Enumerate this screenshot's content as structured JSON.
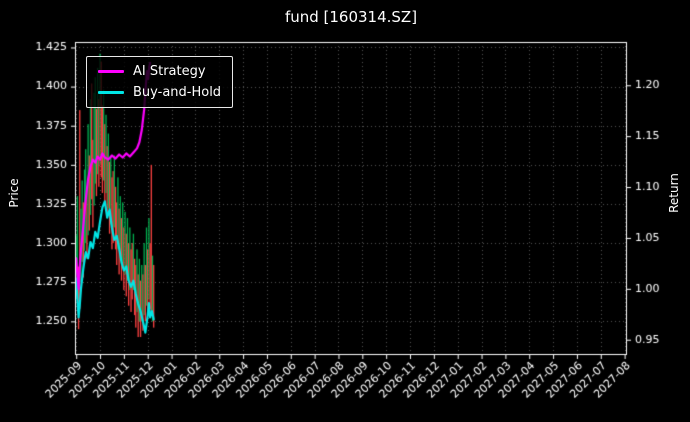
{
  "title": "fund [160314.SZ]",
  "axes": {
    "price_label": "Price",
    "return_label": "Return"
  },
  "legend": {
    "items": [
      {
        "label": "AI Strategy",
        "color": "#ff00ff"
      },
      {
        "label": "Buy-and-Hold",
        "color": "#00e5e5"
      }
    ]
  },
  "colors": {
    "background": "#000000",
    "text": "#ffffff",
    "grid": "rgba(170,170,170,0.5)",
    "frame": "#ffffff",
    "candle_up": "#00b050",
    "candle_down": "#fd4141",
    "ai_line": "#ff00ff",
    "bh_line": "#00e5e5"
  },
  "chart_data": {
    "type": "line",
    "title": "fund [160314.SZ]",
    "grid": "dotted",
    "legend_position": "upper-left",
    "x_tick_labels": [
      "2025-09",
      "2025-10",
      "2025-11",
      "2025-12",
      "2026-01",
      "2026-02",
      "2026-03",
      "2026-04",
      "2026-05",
      "2026-06",
      "2026-07",
      "2026-08",
      "2026-09",
      "2026-10",
      "2026-11",
      "2026-12",
      "2027-01",
      "2027-02",
      "2027-03",
      "2027-04",
      "2027-05",
      "2027-06",
      "2027-07",
      "2027-08"
    ],
    "xlim": [
      -0.05,
      23.1
    ],
    "price_axis": {
      "label": "Price",
      "side": "left",
      "ticks": [
        1.425,
        1.4,
        1.375,
        1.35,
        1.325,
        1.3,
        1.275,
        1.25
      ],
      "decimals": 3,
      "ylim": [
        1.2285,
        1.4285
      ]
    },
    "return_axis": {
      "label": "Return",
      "side": "right",
      "ticks": [
        1.2,
        1.15,
        1.1,
        1.05,
        1.0,
        0.95
      ],
      "decimals": 2,
      "ylim": [
        0.935,
        1.2425
      ]
    },
    "series": [
      {
        "name": "AI Strategy",
        "axis": "return",
        "color": "#ff00ff",
        "linewidth": 2.2,
        "points": [
          [
            0.0,
            1.03
          ],
          [
            0.05,
            1.014
          ],
          [
            0.1,
            1.0
          ],
          [
            0.15,
            1.022
          ],
          [
            0.2,
            1.038
          ],
          [
            0.3,
            1.062
          ],
          [
            0.4,
            1.088
          ],
          [
            0.5,
            1.108
          ],
          [
            0.6,
            1.12
          ],
          [
            0.7,
            1.127
          ],
          [
            0.8,
            1.124
          ],
          [
            0.9,
            1.13
          ],
          [
            1.0,
            1.127
          ],
          [
            1.1,
            1.133
          ],
          [
            1.2,
            1.129
          ],
          [
            1.35,
            1.127
          ],
          [
            1.5,
            1.131
          ],
          [
            1.65,
            1.128
          ],
          [
            1.8,
            1.132
          ],
          [
            1.95,
            1.129
          ],
          [
            2.1,
            1.133
          ],
          [
            2.25,
            1.13
          ],
          [
            2.4,
            1.134
          ],
          [
            2.55,
            1.138
          ],
          [
            2.65,
            1.144
          ],
          [
            2.75,
            1.156
          ],
          [
            2.85,
            1.176
          ],
          [
            2.92,
            1.2
          ],
          [
            2.97,
            1.214
          ],
          [
            3.02,
            1.206
          ],
          [
            3.07,
            1.219
          ],
          [
            3.1,
            1.222
          ]
        ]
      },
      {
        "name": "Buy-and-Hold",
        "axis": "return",
        "color": "#00e5e5",
        "linewidth": 2.2,
        "points": [
          [
            0.0,
            1.01
          ],
          [
            0.05,
            0.99
          ],
          [
            0.1,
            0.972
          ],
          [
            0.15,
            0.984
          ],
          [
            0.2,
            1.0
          ],
          [
            0.3,
            1.02
          ],
          [
            0.4,
            1.036
          ],
          [
            0.5,
            1.03
          ],
          [
            0.6,
            1.046
          ],
          [
            0.7,
            1.04
          ],
          [
            0.8,
            1.056
          ],
          [
            0.9,
            1.05
          ],
          [
            1.0,
            1.066
          ],
          [
            1.1,
            1.08
          ],
          [
            1.2,
            1.086
          ],
          [
            1.3,
            1.07
          ],
          [
            1.4,
            1.078
          ],
          [
            1.5,
            1.06
          ],
          [
            1.6,
            1.048
          ],
          [
            1.7,
            1.052
          ],
          [
            1.8,
            1.04
          ],
          [
            1.9,
            1.026
          ],
          [
            2.0,
            1.018
          ],
          [
            2.1,
            1.022
          ],
          [
            2.2,
            1.008
          ],
          [
            2.3,
            1.002
          ],
          [
            2.4,
            1.008
          ],
          [
            2.5,
            0.995
          ],
          [
            2.6,
            0.985
          ],
          [
            2.7,
            0.978
          ],
          [
            2.8,
            0.968
          ],
          [
            2.9,
            0.957
          ],
          [
            3.0,
            0.974
          ],
          [
            3.05,
            0.986
          ],
          [
            3.1,
            0.972
          ],
          [
            3.18,
            0.978
          ],
          [
            3.25,
            0.97
          ]
        ]
      }
    ],
    "candles": {
      "axis": "price",
      "up_color": "#00b050",
      "down_color": "#fd4141",
      "bar_width": 1.3,
      "bars": [
        [
          0.0,
          1.265,
          1.305,
          1
        ],
        [
          0.05,
          1.27,
          1.33,
          1
        ],
        [
          0.1,
          1.245,
          1.285,
          0
        ],
        [
          0.15,
          1.258,
          1.385,
          0
        ],
        [
          0.2,
          1.275,
          1.322,
          1
        ],
        [
          0.25,
          1.288,
          1.34,
          1
        ],
        [
          0.3,
          1.278,
          1.326,
          0
        ],
        [
          0.35,
          1.295,
          1.347,
          1
        ],
        [
          0.4,
          1.3,
          1.36,
          1
        ],
        [
          0.45,
          1.29,
          1.336,
          0
        ],
        [
          0.5,
          1.305,
          1.376,
          1
        ],
        [
          0.55,
          1.308,
          1.356,
          0
        ],
        [
          0.6,
          1.318,
          1.392,
          1
        ],
        [
          0.65,
          1.328,
          1.402,
          0
        ],
        [
          0.7,
          1.31,
          1.366,
          0
        ],
        [
          0.75,
          1.324,
          1.396,
          1
        ],
        [
          0.8,
          1.338,
          1.406,
          1
        ],
        [
          0.85,
          1.33,
          1.386,
          0
        ],
        [
          0.9,
          1.344,
          1.412,
          1
        ],
        [
          0.95,
          1.336,
          1.392,
          0
        ],
        [
          1.0,
          1.35,
          1.421,
          1
        ],
        [
          1.05,
          1.342,
          1.416,
          0
        ],
        [
          1.1,
          1.332,
          1.388,
          0
        ],
        [
          1.15,
          1.34,
          1.398,
          1
        ],
        [
          1.2,
          1.326,
          1.376,
          0
        ],
        [
          1.25,
          1.332,
          1.382,
          1
        ],
        [
          1.3,
          1.316,
          1.362,
          0
        ],
        [
          1.35,
          1.322,
          1.37,
          1
        ],
        [
          1.4,
          1.306,
          1.352,
          0
        ],
        [
          1.45,
          1.312,
          1.356,
          1
        ],
        [
          1.5,
          1.296,
          1.342,
          0
        ],
        [
          1.55,
          1.3,
          1.346,
          0
        ],
        [
          1.6,
          1.31,
          1.356,
          1
        ],
        [
          1.65,
          1.296,
          1.336,
          0
        ],
        [
          1.7,
          1.286,
          1.326,
          0
        ],
        [
          1.75,
          1.296,
          1.342,
          1
        ],
        [
          1.8,
          1.28,
          1.322,
          0
        ],
        [
          1.85,
          1.29,
          1.33,
          1
        ],
        [
          1.9,
          1.276,
          1.316,
          0
        ],
        [
          1.95,
          1.286,
          1.326,
          1
        ],
        [
          2.0,
          1.27,
          1.31,
          0
        ],
        [
          2.05,
          1.28,
          1.32,
          1
        ],
        [
          2.1,
          1.266,
          1.306,
          0
        ],
        [
          2.15,
          1.276,
          1.316,
          1
        ],
        [
          2.2,
          1.26,
          1.3,
          0
        ],
        [
          2.25,
          1.27,
          1.31,
          1
        ],
        [
          2.3,
          1.256,
          1.296,
          0
        ],
        [
          2.35,
          1.264,
          1.3,
          0
        ],
        [
          2.4,
          1.27,
          1.306,
          1
        ],
        [
          2.45,
          1.254,
          1.29,
          0
        ],
        [
          2.5,
          1.246,
          1.286,
          0
        ],
        [
          2.55,
          1.256,
          1.296,
          1
        ],
        [
          2.6,
          1.24,
          1.28,
          0
        ],
        [
          2.65,
          1.25,
          1.29,
          1
        ],
        [
          2.7,
          1.24,
          1.276,
          0
        ],
        [
          2.75,
          1.25,
          1.286,
          1
        ],
        [
          2.8,
          1.244,
          1.28,
          0
        ],
        [
          2.85,
          1.254,
          1.3,
          1
        ],
        [
          2.9,
          1.25,
          1.286,
          0
        ],
        [
          2.95,
          1.26,
          1.31,
          1
        ],
        [
          3.0,
          1.254,
          1.296,
          0
        ],
        [
          3.05,
          1.264,
          1.316,
          1
        ],
        [
          3.1,
          1.258,
          1.3,
          0
        ],
        [
          3.15,
          1.254,
          1.35,
          0
        ],
        [
          3.2,
          1.25,
          1.292,
          1
        ],
        [
          3.25,
          1.246,
          1.286,
          0
        ]
      ]
    }
  }
}
